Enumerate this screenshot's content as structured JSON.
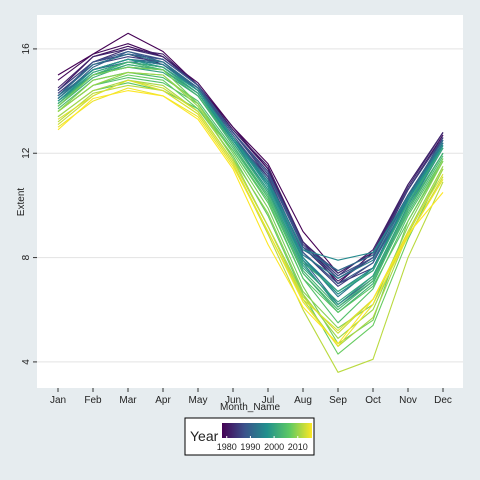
{
  "chart_data": {
    "type": "line",
    "title": "",
    "xlabel": "Month_Name",
    "ylabel": "Extent",
    "categories": [
      "Jan",
      "Feb",
      "Mar",
      "Apr",
      "May",
      "Jun",
      "Jul",
      "Aug",
      "Sep",
      "Oct",
      "Nov",
      "Dec"
    ],
    "y_ticks": [
      "4",
      "8",
      "12",
      "16"
    ],
    "ylim": [
      3.0,
      17.3
    ],
    "grid": "horizontal",
    "legend": {
      "title": "Year",
      "placement": "bottom",
      "ticks": [
        "1980",
        "1990",
        "2000",
        "2010"
      ],
      "range": [
        1978,
        2016
      ],
      "colormap": "viridis"
    },
    "series": [
      {
        "name": "1978",
        "values": [
          15.0,
          15.8,
          16.6,
          15.9,
          14.6,
          13.0,
          11.6,
          9.0,
          7.4,
          8.2,
          10.8,
          12.8
        ]
      },
      {
        "name": "1979",
        "values": [
          14.8,
          15.8,
          16.2,
          15.7,
          14.7,
          13.0,
          11.4,
          8.6,
          7.0,
          8.2,
          10.6,
          12.7
        ]
      },
      {
        "name": "1980",
        "values": [
          14.4,
          15.7,
          16.1,
          15.7,
          14.6,
          12.9,
          11.4,
          8.5,
          7.2,
          8.0,
          10.6,
          12.7
        ]
      },
      {
        "name": "1981",
        "values": [
          14.2,
          15.5,
          15.8,
          15.4,
          14.5,
          12.8,
          11.2,
          8.4,
          7.1,
          8.0,
          10.6,
          12.6
        ]
      },
      {
        "name": "1982",
        "values": [
          14.5,
          15.7,
          16.0,
          15.8,
          14.6,
          12.9,
          11.5,
          8.6,
          7.3,
          8.3,
          10.8,
          12.8
        ]
      },
      {
        "name": "1983",
        "values": [
          14.4,
          15.5,
          16.0,
          15.7,
          14.6,
          12.8,
          11.3,
          8.6,
          7.4,
          8.2,
          10.7,
          12.8
        ]
      },
      {
        "name": "1984",
        "values": [
          14.1,
          15.2,
          15.6,
          15.4,
          14.4,
          12.6,
          11.1,
          8.2,
          7.0,
          7.6,
          10.3,
          12.6
        ]
      },
      {
        "name": "1985",
        "values": [
          14.3,
          15.4,
          15.7,
          15.5,
          14.5,
          12.8,
          11.1,
          8.2,
          6.9,
          7.8,
          10.4,
          12.4
        ]
      },
      {
        "name": "1986",
        "values": [
          14.4,
          15.5,
          15.8,
          15.6,
          14.6,
          12.8,
          11.3,
          8.4,
          7.5,
          8.1,
          10.6,
          12.6
        ]
      },
      {
        "name": "1987",
        "values": [
          14.2,
          15.4,
          15.8,
          15.6,
          14.6,
          12.8,
          11.3,
          8.5,
          7.3,
          8.0,
          10.4,
          12.5
        ]
      },
      {
        "name": "1988",
        "values": [
          14.2,
          15.5,
          15.9,
          15.6,
          14.6,
          12.8,
          11.2,
          8.4,
          7.2,
          8.0,
          10.4,
          12.5
        ]
      },
      {
        "name": "1989",
        "values": [
          14.1,
          15.2,
          15.6,
          15.4,
          14.5,
          12.7,
          11.0,
          8.2,
          7.0,
          7.8,
          10.2,
          12.4
        ]
      },
      {
        "name": "1990",
        "values": [
          14.1,
          15.3,
          15.9,
          15.5,
          14.5,
          12.6,
          10.9,
          7.9,
          6.2,
          7.2,
          10.0,
          12.3
        ]
      },
      {
        "name": "1991",
        "values": [
          14.1,
          15.2,
          15.5,
          15.5,
          14.4,
          12.5,
          10.8,
          8.0,
          6.6,
          7.5,
          10.2,
          12.4
        ]
      },
      {
        "name": "1992",
        "values": [
          14.2,
          15.2,
          15.6,
          15.5,
          14.5,
          12.6,
          11.0,
          8.3,
          7.5,
          8.1,
          10.4,
          12.5
        ]
      },
      {
        "name": "1993",
        "values": [
          14.2,
          15.4,
          15.8,
          15.5,
          14.4,
          12.6,
          10.8,
          8.0,
          6.5,
          7.6,
          10.3,
          12.4
        ]
      },
      {
        "name": "1994",
        "values": [
          14.1,
          15.2,
          15.6,
          15.4,
          14.4,
          12.6,
          10.9,
          8.1,
          7.2,
          7.9,
          10.3,
          12.4
        ]
      },
      {
        "name": "1995",
        "values": [
          14.0,
          15.0,
          15.5,
          15.3,
          14.3,
          12.5,
          10.6,
          7.8,
          6.1,
          7.1,
          9.9,
          12.2
        ]
      },
      {
        "name": "1996",
        "values": [
          13.9,
          15.0,
          15.3,
          15.2,
          14.3,
          12.5,
          10.9,
          8.3,
          7.9,
          8.2,
          10.3,
          12.3
        ]
      },
      {
        "name": "1997",
        "values": [
          14.0,
          15.1,
          15.5,
          15.3,
          14.4,
          12.5,
          10.8,
          8.0,
          6.7,
          7.6,
          10.2,
          12.3
        ]
      },
      {
        "name": "1998",
        "values": [
          14.0,
          15.2,
          15.6,
          15.3,
          14.4,
          12.6,
          10.7,
          7.9,
          6.6,
          7.5,
          10.1,
          12.3
        ]
      },
      {
        "name": "1999",
        "values": [
          13.9,
          15.0,
          15.4,
          15.2,
          14.3,
          12.4,
          10.6,
          7.7,
          6.2,
          7.3,
          10.0,
          12.2
        ]
      },
      {
        "name": "2000",
        "values": [
          13.8,
          15.0,
          15.3,
          15.1,
          14.2,
          12.4,
          10.5,
          7.6,
          6.3,
          7.3,
          9.9,
          12.0
        ]
      },
      {
        "name": "2001",
        "values": [
          13.9,
          15.1,
          15.5,
          15.3,
          14.3,
          12.4,
          10.5,
          7.8,
          6.7,
          7.5,
          10.1,
          12.2
        ]
      },
      {
        "name": "2002",
        "values": [
          13.8,
          14.9,
          15.4,
          15.2,
          14.2,
          12.3,
          10.3,
          7.4,
          5.9,
          7.0,
          9.8,
          12.0
        ]
      },
      {
        "name": "2003",
        "values": [
          13.9,
          15.0,
          15.5,
          15.2,
          14.2,
          12.3,
          10.4,
          7.5,
          6.1,
          7.2,
          9.9,
          12.0
        ]
      },
      {
        "name": "2004",
        "values": [
          13.7,
          14.8,
          15.1,
          14.9,
          14.0,
          12.2,
          10.3,
          7.4,
          6.0,
          7.1,
          9.7,
          11.9
        ]
      },
      {
        "name": "2005",
        "values": [
          13.6,
          14.6,
          14.9,
          14.7,
          13.9,
          12.1,
          10.2,
          7.2,
          5.5,
          6.8,
          9.6,
          11.8
        ]
      },
      {
        "name": "2006",
        "values": [
          13.4,
          14.4,
          14.7,
          14.4,
          13.7,
          12.1,
          10.1,
          7.2,
          5.9,
          6.9,
          9.4,
          11.7
        ]
      },
      {
        "name": "2007",
        "values": [
          13.6,
          14.6,
          15.0,
          14.8,
          13.7,
          11.9,
          9.6,
          6.6,
          4.3,
          5.4,
          8.7,
          11.4
        ]
      },
      {
        "name": "2008",
        "values": [
          13.8,
          15.0,
          15.3,
          15.2,
          13.9,
          12.0,
          9.9,
          6.9,
          4.7,
          5.6,
          9.4,
          11.8
        ]
      },
      {
        "name": "2009",
        "values": [
          13.6,
          14.8,
          15.1,
          15.0,
          13.9,
          11.8,
          9.7,
          6.7,
          5.3,
          6.2,
          9.2,
          11.7
        ]
      },
      {
        "name": "2010",
        "values": [
          13.6,
          14.6,
          15.1,
          15.0,
          13.8,
          11.8,
          9.2,
          6.6,
          4.9,
          6.0,
          9.0,
          11.5
        ]
      },
      {
        "name": "2011",
        "values": [
          13.4,
          14.4,
          14.8,
          14.6,
          13.6,
          11.7,
          9.2,
          6.4,
          4.6,
          5.7,
          8.9,
          11.4
        ]
      },
      {
        "name": "2012",
        "values": [
          13.2,
          14.3,
          14.6,
          14.4,
          13.5,
          11.6,
          8.9,
          6.0,
          3.6,
          4.1,
          8.0,
          10.9
        ]
      },
      {
        "name": "2013",
        "values": [
          13.1,
          14.2,
          14.8,
          14.5,
          13.6,
          11.7,
          9.2,
          6.5,
          5.1,
          6.4,
          8.8,
          11.1
        ]
      },
      {
        "name": "2014",
        "values": [
          13.3,
          14.2,
          14.8,
          14.4,
          13.5,
          11.6,
          9.0,
          6.4,
          5.2,
          6.4,
          9.0,
          11.2
        ]
      },
      {
        "name": "2015",
        "values": [
          13.0,
          14.0,
          14.5,
          14.2,
          13.4,
          11.5,
          9.0,
          6.3,
          4.6,
          6.2,
          8.8,
          11.0
        ]
      },
      {
        "name": "2016",
        "values": [
          12.9,
          14.1,
          14.4,
          14.2,
          13.3,
          11.4,
          8.5,
          6.1,
          4.7,
          6.4,
          8.9,
          10.5
        ]
      }
    ]
  }
}
